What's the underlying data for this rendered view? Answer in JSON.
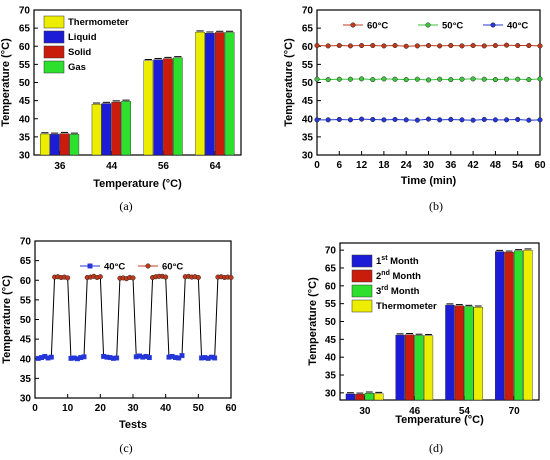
{
  "colors": {
    "thermometer": "#eded00",
    "liquid": "#1c1cd6",
    "solid": "#c91c0c",
    "gas": "#2ee02e",
    "line60": "#c0391b",
    "line50": "#3ec43e",
    "line40": "#2436d8"
  },
  "chart_data": [
    {
      "panel": "a",
      "caption": "(a)",
      "type": "bar",
      "xlabel": "Temperature (°C)",
      "ylabel": "Temperature (°C)",
      "ylim": [
        30,
        70
      ],
      "yticks": [
        30,
        35,
        40,
        45,
        50,
        55,
        60,
        65,
        70
      ],
      "categories": [
        "36",
        "44",
        "56",
        "64"
      ],
      "legend_position": "top-left",
      "series": [
        {
          "name": "Thermometer",
          "color_key": "thermometer",
          "values": [
            35.8,
            44.0,
            56.0,
            63.9
          ]
        },
        {
          "name": "Liquid",
          "color_key": "liquid",
          "values": [
            35.7,
            44.2,
            56.3,
            63.6
          ]
        },
        {
          "name": "Solid",
          "color_key": "solid",
          "values": [
            35.9,
            44.6,
            56.6,
            63.8
          ]
        },
        {
          "name": "Gas",
          "color_key": "gas",
          "values": [
            35.7,
            44.8,
            56.8,
            63.8
          ]
        }
      ]
    },
    {
      "panel": "b",
      "caption": "(b)",
      "type": "line",
      "xlabel": "Time (min)",
      "ylabel": "Temperature (°C)",
      "xlim": [
        0,
        60
      ],
      "xticks": [
        0,
        6,
        12,
        18,
        24,
        30,
        36,
        42,
        48,
        54,
        60
      ],
      "ylim": [
        30,
        70
      ],
      "yticks": [
        30,
        35,
        40,
        45,
        50,
        55,
        60,
        65,
        70
      ],
      "legend_position": "top",
      "x": [
        0,
        3,
        6,
        9,
        12,
        15,
        18,
        21,
        24,
        27,
        30,
        33,
        36,
        39,
        42,
        45,
        48,
        51,
        54,
        57,
        60
      ],
      "series": [
        {
          "name": "60°C",
          "color_key": "line60",
          "values": [
            60.2,
            60.1,
            60.2,
            60.1,
            60.2,
            60.2,
            60.1,
            60.2,
            60.0,
            60.1,
            60.2,
            60.1,
            60.2,
            60.1,
            60.2,
            60.1,
            60.2,
            60.3,
            60.2,
            60.2,
            60.1
          ]
        },
        {
          "name": "50°C",
          "color_key": "line50",
          "values": [
            50.9,
            50.8,
            50.9,
            50.9,
            51.0,
            50.8,
            51.0,
            50.9,
            50.8,
            50.9,
            50.7,
            50.9,
            50.8,
            50.9,
            51.0,
            50.9,
            50.8,
            50.9,
            50.9,
            50.8,
            51.0
          ]
        },
        {
          "name": "40°C",
          "color_key": "line40",
          "values": [
            39.7,
            39.7,
            39.8,
            39.7,
            39.9,
            39.8,
            39.7,
            39.8,
            39.7,
            39.6,
            39.9,
            39.7,
            39.8,
            39.7,
            39.6,
            39.8,
            39.7,
            39.7,
            39.8,
            39.6,
            39.7
          ]
        }
      ]
    },
    {
      "panel": "c",
      "caption": "(c)",
      "type": "line",
      "xlabel": "Tests",
      "ylabel": "Temperature (°C)",
      "xlim": [
        0,
        60
      ],
      "xticks": [
        0,
        10,
        20,
        30,
        40,
        50,
        60
      ],
      "ylim": [
        30,
        70
      ],
      "yticks": [
        30,
        35,
        40,
        45,
        50,
        55,
        60,
        65,
        70
      ],
      "legend_position": "top",
      "series": [
        {
          "name": "40°C",
          "color_key": "line40",
          "marker": "square"
        },
        {
          "name": "60°C",
          "color_key": "line60",
          "marker": "circle"
        }
      ],
      "x": [
        1,
        2,
        3,
        4,
        5,
        6,
        7,
        8,
        9,
        10,
        11,
        12,
        13,
        14,
        15,
        16,
        17,
        18,
        19,
        20,
        21,
        22,
        23,
        24,
        25,
        26,
        27,
        28,
        29,
        30,
        31,
        32,
        33,
        34,
        35,
        36,
        37,
        38,
        39,
        40,
        41,
        42,
        43,
        44,
        45,
        46,
        47,
        48,
        49,
        50,
        51,
        52,
        53,
        54,
        55,
        56,
        57,
        58,
        59,
        60
      ],
      "y": [
        40.1,
        40.3,
        40.6,
        40.2,
        40.4,
        60.8,
        60.9,
        60.7,
        60.8,
        60.6,
        40.1,
        40.2,
        40.0,
        40.3,
        40.5,
        60.7,
        60.8,
        61.0,
        60.7,
        60.9,
        40.6,
        40.4,
        40.3,
        40.1,
        40.2,
        60.5,
        60.6,
        60.4,
        60.7,
        60.6,
        40.5,
        40.7,
        40.4,
        40.6,
        40.3,
        60.7,
        60.9,
        61.0,
        61.0,
        60.8,
        40.4,
        40.6,
        40.3,
        40.2,
        40.8,
        60.9,
        61.0,
        60.8,
        60.9,
        60.7,
        40.2,
        40.3,
        40.1,
        40.4,
        40.2,
        60.8,
        60.9,
        60.7,
        60.8,
        60.7
      ],
      "series_index": [
        0,
        0,
        0,
        0,
        0,
        1,
        1,
        1,
        1,
        1,
        0,
        0,
        0,
        0,
        0,
        1,
        1,
        1,
        1,
        1,
        0,
        0,
        0,
        0,
        0,
        1,
        1,
        1,
        1,
        1,
        0,
        0,
        0,
        0,
        0,
        1,
        1,
        1,
        1,
        1,
        0,
        0,
        0,
        0,
        0,
        1,
        1,
        1,
        1,
        1,
        0,
        0,
        0,
        0,
        0,
        1,
        1,
        1,
        1,
        1
      ]
    },
    {
      "panel": "d",
      "caption": "(d)",
      "type": "bar",
      "xlabel": "Temperature (°C)",
      "ylabel": "Temperature (°C)",
      "ylim": [
        28,
        72
      ],
      "yticks": [
        30,
        35,
        40,
        45,
        50,
        55,
        60,
        65,
        70
      ],
      "categories": [
        "30",
        "46",
        "54",
        "70"
      ],
      "legend_position": "top-left",
      "series": [
        {
          "name": "1",
          "name_sup": "st",
          "name_rest": " Month",
          "color_key": "liquid",
          "values": [
            29.7,
            46.2,
            54.6,
            69.6
          ]
        },
        {
          "name": "2",
          "name_sup": "nd",
          "name_rest": " Month",
          "color_key": "solid",
          "values": [
            29.6,
            46.3,
            54.4,
            69.4
          ]
        },
        {
          "name": "3",
          "name_sup": "rd",
          "name_rest": " Month",
          "color_key": "gas",
          "values": [
            29.9,
            46.1,
            54.2,
            69.8
          ]
        },
        {
          "name": "Thermometer",
          "name_sup": "",
          "name_rest": "",
          "color_key": "thermometer",
          "values": [
            29.8,
            46.0,
            54.0,
            70.0
          ]
        }
      ]
    }
  ]
}
